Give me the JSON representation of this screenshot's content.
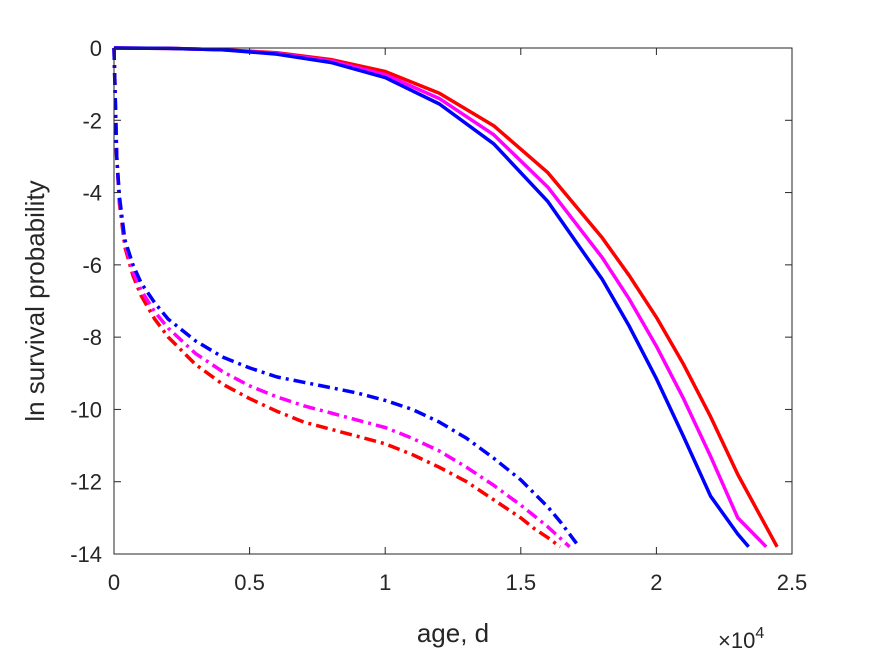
{
  "chart_data": {
    "type": "line",
    "title": "",
    "xlabel": "age, d",
    "ylabel": "ln survival probability",
    "x_exponent_label": "×10",
    "x_exponent_power": "4",
    "x_scale": 10000,
    "xlim": [
      0,
      25000
    ],
    "ylim": [
      -14,
      0
    ],
    "grid": false,
    "legend": "none",
    "xticks": [
      0,
      5000,
      10000,
      15000,
      20000,
      25000
    ],
    "xtick_labels": [
      "0",
      "0.5",
      "1",
      "1.5",
      "2",
      "2.5"
    ],
    "yticks": [
      0,
      -2,
      -4,
      -6,
      -8,
      -10,
      -12,
      -14
    ],
    "ytick_labels": [
      "0",
      "-2",
      "-4",
      "-6",
      "-8",
      "-10",
      "-12",
      "-14"
    ],
    "series": [
      {
        "color": "#ff0000",
        "style": "solid",
        "x": [
          0,
          2000,
          4000,
          6000,
          8000,
          10000,
          12000,
          14000,
          16000,
          18000,
          19000,
          20000,
          21000,
          22000,
          23000,
          24450
        ],
        "y": [
          0,
          -0.01,
          -0.05,
          -0.13,
          -0.32,
          -0.65,
          -1.25,
          -2.15,
          -3.45,
          -5.25,
          -6.3,
          -7.45,
          -8.75,
          -10.2,
          -11.8,
          -13.8
        ]
      },
      {
        "color": "#ff00ff",
        "style": "solid",
        "x": [
          0,
          2000,
          4000,
          6000,
          8000,
          10000,
          12000,
          14000,
          16000,
          18000,
          19000,
          20000,
          21000,
          22000,
          23000,
          24050
        ],
        "y": [
          0,
          -0.01,
          -0.05,
          -0.15,
          -0.36,
          -0.74,
          -1.4,
          -2.4,
          -3.85,
          -5.8,
          -6.95,
          -8.25,
          -9.7,
          -11.3,
          -13.0,
          -13.8
        ]
      },
      {
        "color": "#0000ff",
        "style": "solid",
        "x": [
          0,
          2000,
          4000,
          6000,
          8000,
          10000,
          12000,
          14000,
          16000,
          18000,
          19000,
          20000,
          21000,
          22000,
          23000,
          23400
        ],
        "y": [
          0,
          -0.01,
          -0.05,
          -0.17,
          -0.4,
          -0.82,
          -1.55,
          -2.65,
          -4.25,
          -6.4,
          -7.7,
          -9.15,
          -10.75,
          -12.4,
          -13.45,
          -13.8
        ]
      },
      {
        "color": "#ff0000",
        "style": "dashdot",
        "x": [
          0,
          100,
          200,
          400,
          700,
          1000,
          1500,
          2000,
          3000,
          4000,
          5000,
          6000,
          7000,
          8000,
          9000,
          10000,
          11000,
          12000,
          13000,
          14000,
          15000,
          15500,
          16000,
          16450
        ],
        "y": [
          0,
          -3.0,
          -4.3,
          -5.5,
          -6.3,
          -6.85,
          -7.5,
          -8.0,
          -8.75,
          -9.3,
          -9.7,
          -10.05,
          -10.35,
          -10.55,
          -10.75,
          -10.95,
          -11.25,
          -11.6,
          -12.0,
          -12.5,
          -13.0,
          -13.3,
          -13.55,
          -13.8
        ]
      },
      {
        "color": "#ff00ff",
        "style": "dashdot",
        "x": [
          0,
          100,
          200,
          400,
          700,
          1000,
          1500,
          2000,
          3000,
          4000,
          5000,
          6000,
          7000,
          8000,
          9000,
          10000,
          11000,
          12000,
          13000,
          14000,
          15000,
          15500,
          16000,
          16800
        ],
        "y": [
          0,
          -3.0,
          -4.2,
          -5.4,
          -6.2,
          -6.7,
          -7.3,
          -7.75,
          -8.45,
          -8.95,
          -9.35,
          -9.65,
          -9.9,
          -10.1,
          -10.3,
          -10.5,
          -10.8,
          -11.15,
          -11.6,
          -12.1,
          -12.65,
          -12.95,
          -13.25,
          -13.8
        ]
      },
      {
        "color": "#0000ff",
        "style": "dashdot",
        "x": [
          0,
          100,
          200,
          400,
          700,
          1000,
          1500,
          2000,
          3000,
          4000,
          5000,
          6000,
          7000,
          8000,
          9000,
          10000,
          11000,
          12000,
          13000,
          14000,
          15000,
          16000,
          16500,
          17150
        ],
        "y": [
          0,
          -3.0,
          -4.1,
          -5.3,
          -6.0,
          -6.5,
          -7.05,
          -7.5,
          -8.1,
          -8.55,
          -8.85,
          -9.1,
          -9.25,
          -9.4,
          -9.55,
          -9.75,
          -10.0,
          -10.35,
          -10.8,
          -11.35,
          -11.95,
          -12.7,
          -13.15,
          -13.8
        ]
      }
    ]
  }
}
